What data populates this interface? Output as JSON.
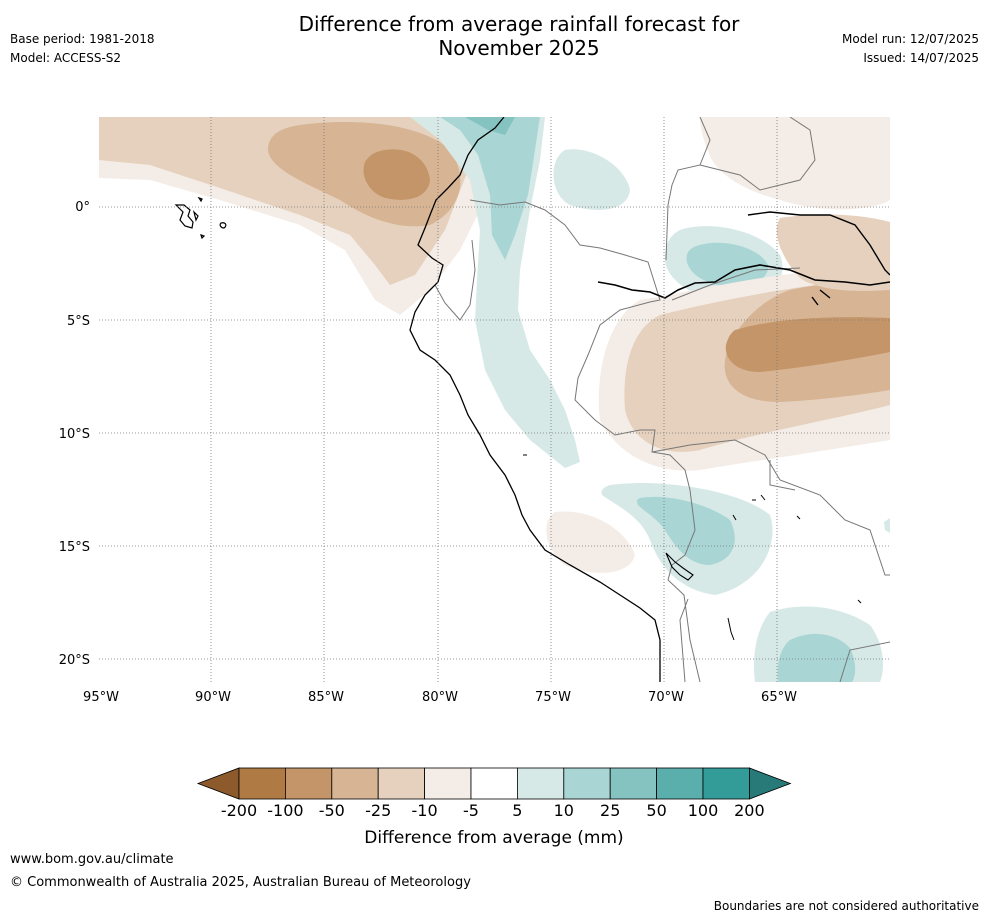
{
  "header": {
    "title_line1": "Difference from average rainfall forecast for",
    "title_line2": "November 2025",
    "base_period": "Base period: 1981-2018",
    "model": "Model: ACCESS-S2",
    "model_run": "Model run: 12/07/2025",
    "issued": "Issued: 14/07/2025"
  },
  "map": {
    "lat_labels": [
      "0°",
      "5°S",
      "10°S",
      "15°S",
      "20°S"
    ],
    "lon_labels": [
      "95°W",
      "90°W",
      "85°W",
      "80°W",
      "75°W",
      "70°W",
      "65°W"
    ]
  },
  "colorbar": {
    "title": "Difference from average (mm)",
    "ticks": [
      "-200",
      "-100",
      "-50",
      "-25",
      "-10",
      "-5",
      "5",
      "10",
      "25",
      "50",
      "100",
      "200"
    ],
    "colors": [
      "#8c5a2b",
      "#b07a45",
      "#c49568",
      "#d6b494",
      "#e5d1bd",
      "#f4ece6",
      "#ffffff",
      "#d6e9e7",
      "#a9d6d4",
      "#84c3c0",
      "#5aafad",
      "#339c99",
      "#287a78"
    ]
  },
  "footer": {
    "url": "www.bom.gov.au/climate",
    "copyright": "© Commonwealth of Australia 2025, Australian Bureau of Meteorology",
    "disclaimer": "Boundaries are not considered authoritative"
  }
}
